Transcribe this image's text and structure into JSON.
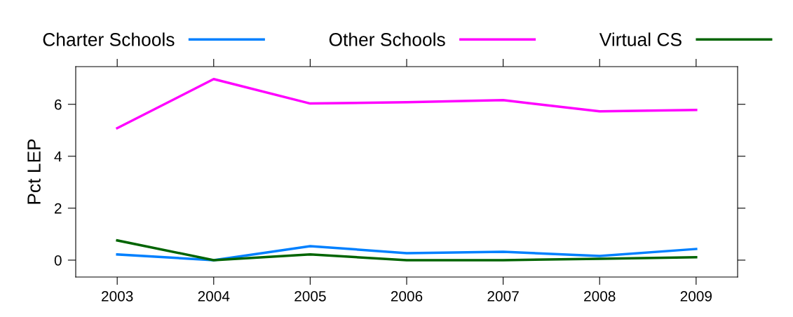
{
  "chart_data": {
    "type": "line",
    "ylabel": "Pct LEP",
    "x": [
      2003,
      2004,
      2005,
      2006,
      2007,
      2008,
      2009
    ],
    "series": [
      {
        "name": "Charter Schools",
        "color": "#0080ff",
        "values": [
          0.22,
          0.0,
          0.54,
          0.27,
          0.32,
          0.16,
          0.43
        ]
      },
      {
        "name": "Other Schools",
        "color": "#ff00ff",
        "values": [
          5.08,
          6.97,
          6.03,
          6.08,
          6.16,
          5.73,
          5.78
        ]
      },
      {
        "name": "Virtual CS",
        "color": "#006400",
        "values": [
          0.76,
          0.0,
          0.22,
          0.0,
          0.0,
          0.05,
          0.11
        ]
      }
    ],
    "xlim": [
      2002.57,
      2009.43
    ],
    "ylim": [
      -0.65,
      7.45
    ],
    "xticks": [
      2003,
      2004,
      2005,
      2006,
      2007,
      2008,
      2009
    ],
    "yticks": [
      0,
      2,
      4,
      6
    ],
    "grid": false,
    "legend": "top",
    "line_style": "solid",
    "marker": "none"
  }
}
